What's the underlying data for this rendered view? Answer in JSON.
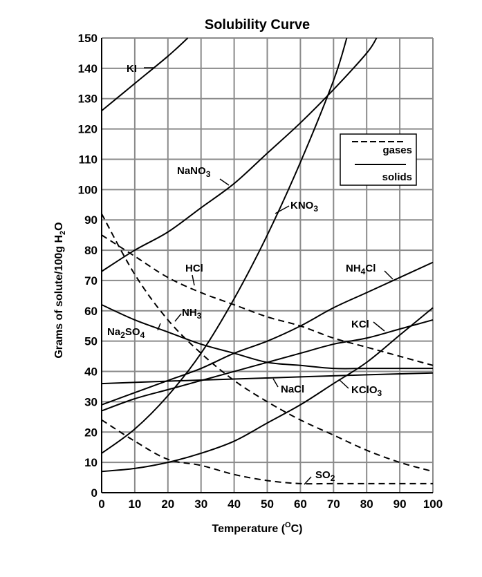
{
  "chart_data": {
    "type": "line",
    "title": "Solubility Curve",
    "xlabel": "Temperature (°C)",
    "xlabel_parts": {
      "pre": "Temperature (",
      "sup": "O",
      "post": "C)"
    },
    "ylabel": "Grams of solute/100g H2O",
    "ylabel_parts": {
      "pre": "Grams of solute/100g H",
      "sub": "2",
      "post": "O"
    },
    "xlim": [
      0,
      100
    ],
    "ylim": [
      0,
      150
    ],
    "xticks": [
      0,
      10,
      20,
      30,
      40,
      50,
      60,
      70,
      80,
      90,
      100
    ],
    "yticks": [
      0,
      10,
      20,
      30,
      40,
      50,
      60,
      70,
      80,
      90,
      100,
      110,
      120,
      130,
      140,
      150
    ],
    "grid": true,
    "legend": {
      "position": "right",
      "entries": [
        {
          "label": "gases",
          "style": "dashed"
        },
        {
          "label": "solids",
          "style": "solid"
        }
      ]
    },
    "series": [
      {
        "name": "KI",
        "label": {
          "base": "KI"
        },
        "style": "solid",
        "x": [
          0,
          10,
          20,
          26
        ],
        "y": [
          126,
          135,
          144,
          150
        ]
      },
      {
        "name": "NaNO3",
        "label": {
          "base": "NaNO",
          "sub": "3"
        },
        "style": "solid",
        "x": [
          0,
          10,
          20,
          30,
          40,
          50,
          60,
          70,
          80,
          83
        ],
        "y": [
          73,
          80,
          86,
          94,
          102,
          112,
          122,
          133,
          145,
          150
        ]
      },
      {
        "name": "KNO3",
        "label": {
          "base": "KNO",
          "sub": "3"
        },
        "style": "solid",
        "x": [
          0,
          10,
          20,
          30,
          40,
          50,
          60,
          70,
          74
        ],
        "y": [
          13,
          21,
          32,
          46,
          64,
          85,
          109,
          136,
          150
        ]
      },
      {
        "name": "NH4Cl",
        "label": {
          "base": "NH",
          "sub": "4",
          "post": "Cl"
        },
        "style": "solid",
        "x": [
          0,
          10,
          20,
          30,
          40,
          50,
          60,
          70,
          80,
          90,
          100
        ],
        "y": [
          29,
          33,
          37,
          41,
          46,
          50,
          55,
          61,
          66,
          71,
          76
        ]
      },
      {
        "name": "KCl",
        "label": {
          "base": "KCl"
        },
        "style": "solid",
        "x": [
          0,
          10,
          20,
          30,
          40,
          50,
          60,
          70,
          80,
          90,
          100
        ],
        "y": [
          27,
          31,
          34,
          37,
          40,
          43,
          46,
          49,
          51,
          54,
          57
        ]
      },
      {
        "name": "NaCl",
        "label": {
          "base": "NaCl"
        },
        "style": "solid",
        "x": [
          0,
          20,
          40,
          60,
          80,
          100
        ],
        "y": [
          36,
          36.8,
          37.5,
          38.2,
          38.9,
          39.5
        ]
      },
      {
        "name": "KClO3",
        "label": {
          "base": "KClO",
          "sub": "3"
        },
        "style": "solid",
        "x": [
          0,
          10,
          20,
          30,
          40,
          50,
          60,
          70,
          80,
          90,
          100
        ],
        "y": [
          7,
          8,
          10,
          13,
          17,
          23,
          29,
          36,
          43,
          52,
          61
        ]
      },
      {
        "name": "Na2SO4",
        "label": {
          "base": "Na",
          "sub": "2",
          "post": "SO",
          "sub2": "4"
        },
        "style": "solid",
        "x": [
          0,
          10,
          20,
          30,
          40,
          50,
          60,
          70,
          80,
          90,
          100
        ],
        "y": [
          62,
          57,
          53,
          49,
          46,
          43,
          42,
          41,
          41,
          41,
          41
        ]
      },
      {
        "name": "HCl",
        "label": {
          "base": "HCl"
        },
        "style": "dashed",
        "x": [
          0,
          10,
          20,
          30,
          40,
          50,
          60,
          70,
          80,
          90,
          100
        ],
        "y": [
          85,
          78,
          71,
          66,
          62,
          58,
          55,
          51,
          48,
          45,
          42
        ]
      },
      {
        "name": "NH3",
        "label": {
          "base": "NH",
          "sub": "3"
        },
        "style": "dashed",
        "x": [
          0,
          10,
          20,
          30,
          40,
          50,
          60,
          70,
          80,
          90,
          100
        ],
        "y": [
          92,
          72,
          57,
          46,
          37,
          30,
          24,
          19,
          14,
          10,
          7
        ]
      },
      {
        "name": "SO2",
        "label": {
          "base": "SO",
          "sub": "2"
        },
        "style": "dashed",
        "x": [
          0,
          10,
          20,
          30,
          40,
          50,
          60,
          70,
          80,
          90,
          100
        ],
        "y": [
          24,
          17,
          11,
          9,
          6,
          4,
          3,
          3,
          3,
          3,
          3
        ]
      }
    ]
  }
}
